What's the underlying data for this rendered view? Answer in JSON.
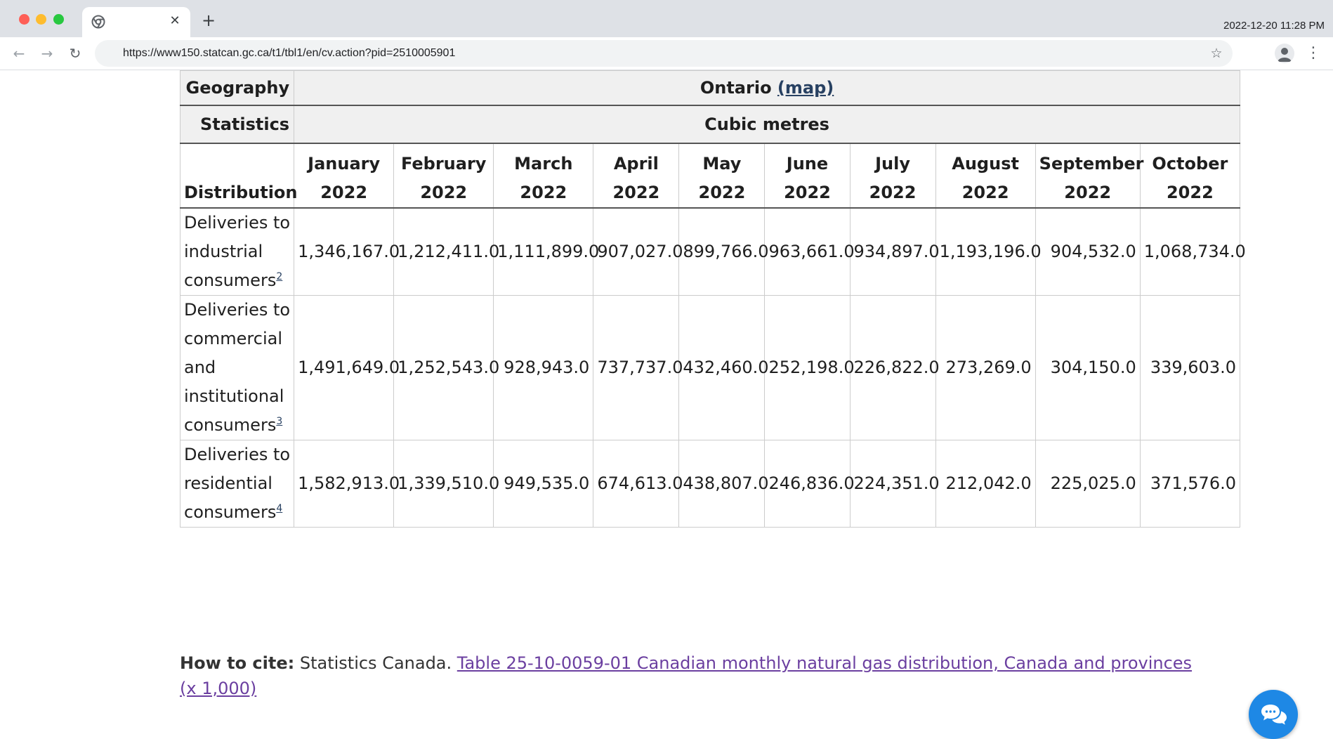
{
  "browser": {
    "datetime": "2022-12-20 11:28 PM",
    "url": "https://www150.statcan.gc.ca/t1/tbl1/en/cv.action?pid=2510005901",
    "icons": {
      "favicon": "chrome-icon",
      "close": "close-icon",
      "new_tab": "plus-icon",
      "back": "arrow-left-icon",
      "forward": "arrow-right-icon",
      "reload": "reload-icon",
      "bookmark": "star-icon",
      "profile": "profile-icon",
      "menu": "kebab-icon"
    },
    "glyphs": {
      "close": "✕",
      "new_tab": "+",
      "back": "←",
      "forward": "→",
      "reload": "↻",
      "star": "☆",
      "menu": "⋮"
    }
  },
  "table": {
    "geography_label": "Geography",
    "geography_value": "Ontario",
    "map_link": "(map)",
    "statistics_label": "Statistics",
    "statistics_value": "Cubic metres",
    "distribution_label": "Distribution",
    "months": [
      [
        "January",
        "2022"
      ],
      [
        "February",
        "2022"
      ],
      [
        "March",
        "2022"
      ],
      [
        "April",
        "2022"
      ],
      [
        "May",
        "2022"
      ],
      [
        "June",
        "2022"
      ],
      [
        "July 2022",
        ""
      ],
      [
        "August",
        "2022"
      ],
      [
        "September",
        "2022"
      ],
      [
        "October",
        "2022"
      ]
    ],
    "rows": [
      {
        "label_lines": [
          "Deliveries to",
          "industrial",
          "consumers"
        ],
        "footnote": "2",
        "values": [
          "1,346,167.0",
          "1,212,411.0",
          "1,111,899.0",
          "907,027.0",
          "899,766.0",
          "963,661.0",
          "934,897.0",
          "1,193,196.0",
          "904,532.0",
          "1,068,734.0"
        ]
      },
      {
        "label_lines": [
          "Deliveries to",
          "commercial",
          "and",
          "institutional",
          "consumers"
        ],
        "footnote": "3",
        "values": [
          "1,491,649.0",
          "1,252,543.0",
          "928,943.0",
          "737,737.0",
          "432,460.0",
          "252,198.0",
          "226,822.0",
          "273,269.0",
          "304,150.0",
          "339,603.0"
        ]
      },
      {
        "label_lines": [
          "Deliveries to",
          "residential",
          "consumers"
        ],
        "footnote": "4",
        "values": [
          "1,582,913.0",
          "1,339,510.0",
          "949,535.0",
          "674,613.0",
          "438,807.0",
          "246,836.0",
          "224,351.0",
          "212,042.0",
          "225,025.0",
          "371,576.0"
        ]
      }
    ]
  },
  "cite": {
    "label": "How to cite:",
    "text": " Statistics Canada. ",
    "link": "Table 25-10-0059-01  Canadian monthly natural gas distribution, Canada and provinces (x 1,000)"
  },
  "chat_button": {
    "icon": "chat-bubbles-icon",
    "color": "#1e88e5"
  },
  "colors": {
    "link": "#284162",
    "visited_link": "#6b3fa0",
    "header_bg": "#f0f0f0"
  }
}
